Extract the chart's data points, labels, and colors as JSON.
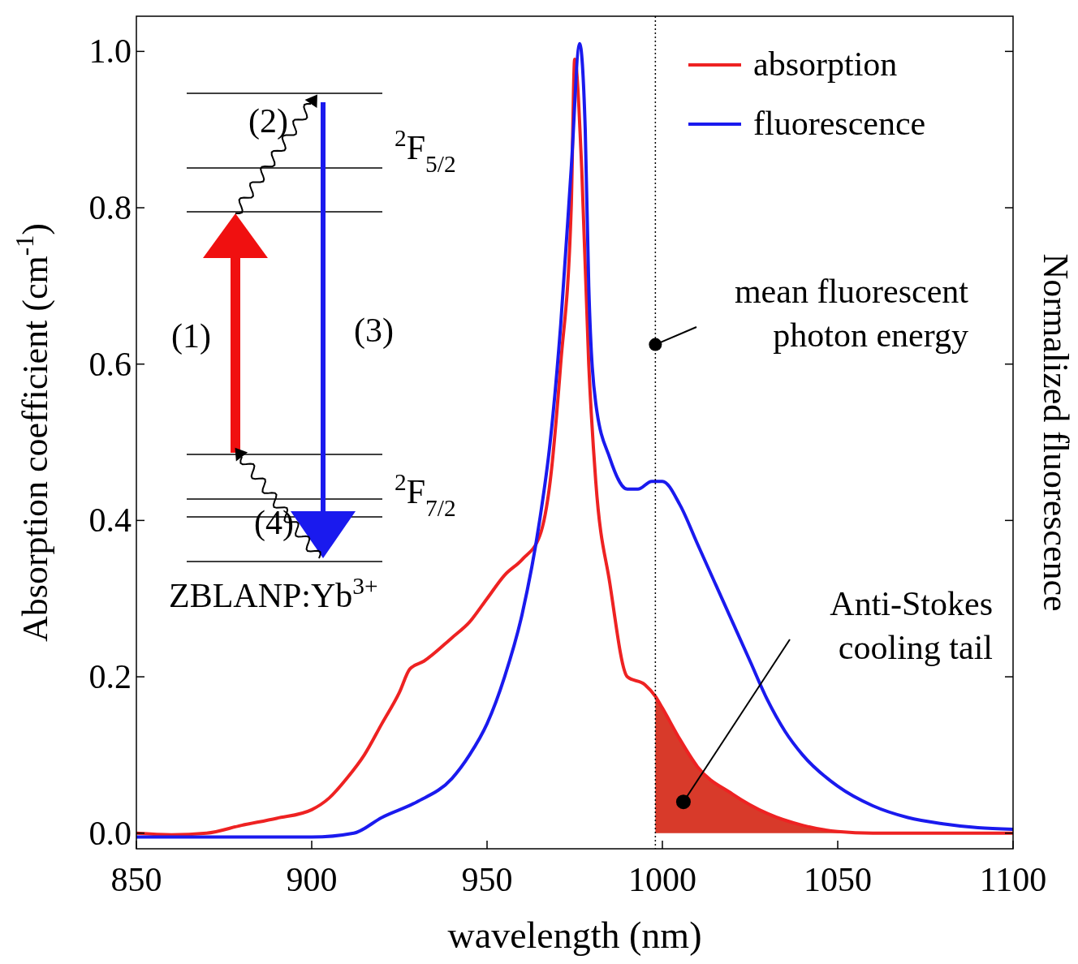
{
  "chart_data": {
    "type": "line",
    "xlabel": "wavelength (nm)",
    "ylabel": "Absorption coefficient (cm$^{-1}$)",
    "y2label": "Normalized fluorescence",
    "xlim": [
      850,
      1100
    ],
    "xticks": [
      850,
      900,
      950,
      1000,
      1050,
      1100
    ],
    "ylim": [
      -0.02,
      1.045
    ],
    "yticks": [
      {
        "value": 0,
        "label": "0.0"
      },
      {
        "value": 0.2,
        "label": "0.2"
      },
      {
        "value": 0.4,
        "label": "0.4"
      },
      {
        "value": 0.6,
        "label": "0.6"
      },
      {
        "value": 0.8,
        "label": "0.8"
      },
      {
        "value": 1,
        "label": "1.0"
      }
    ],
    "grid": false,
    "legend": "top right",
    "marker": "none",
    "line_style": "solid",
    "series": [
      {
        "type": "area",
        "color": "#d83a2a",
        "x": [
          998,
          1000,
          1005,
          1010,
          1020,
          1030,
          1040,
          1050,
          1060
        ],
        "values": [
          0.175,
          0.16,
          0.12,
          0.085,
          0.05,
          0.025,
          0.01,
          0.002,
          0
        ]
      },
      {
        "name": "absorption",
        "color": "#ee2222",
        "x": [
          850,
          860,
          870,
          880,
          890,
          900,
          905,
          910,
          915,
          920,
          925,
          928,
          932,
          940,
          945,
          950,
          955,
          960,
          965,
          968,
          971,
          974,
          975,
          977,
          979,
          981,
          985,
          990,
          995,
          998,
          1000,
          1005,
          1010,
          1020,
          1030,
          1040,
          1050,
          1060,
          1100
        ],
        "values": [
          0,
          -0.002,
          0,
          0.01,
          0.019,
          0.03,
          0.045,
          0.07,
          0.1,
          0.14,
          0.18,
          0.21,
          0.22,
          0.25,
          0.27,
          0.3,
          0.33,
          0.35,
          0.38,
          0.45,
          0.6,
          0.8,
          0.99,
          0.85,
          0.6,
          0.45,
          0.32,
          0.2,
          0.19,
          0.175,
          0.16,
          0.12,
          0.085,
          0.05,
          0.025,
          0.01,
          0.002,
          0,
          0
        ]
      },
      {
        "name": "fluorescence",
        "color": "#1a1aee",
        "x": [
          850,
          900,
          912,
          920,
          930,
          940,
          945,
          950,
          955,
          960,
          965,
          968,
          971,
          974,
          976.4,
          978,
          979,
          981,
          985,
          990,
          993,
          997,
          1000,
          1005,
          1010,
          1015,
          1020,
          1025,
          1030,
          1035,
          1040,
          1050,
          1060,
          1070,
          1080,
          1090,
          1100
        ],
        "values": [
          -0.005,
          -0.005,
          0,
          0.02,
          0.04,
          0.07,
          0.1,
          0.14,
          0.2,
          0.28,
          0.4,
          0.5,
          0.65,
          0.85,
          1.01,
          0.9,
          0.7,
          0.55,
          0.48,
          0.44,
          0.44,
          0.45,
          0.45,
          0.42,
          0.37,
          0.32,
          0.27,
          0.22,
          0.17,
          0.13,
          0.1,
          0.06,
          0.035,
          0.02,
          0.012,
          0.007,
          0.005
        ]
      }
    ],
    "ref_lines": [
      {
        "axis": "x",
        "value": 998,
        "label": "mean fluorescent\nphoton energy",
        "color": "#000000",
        "line_style": "dotted"
      }
    ],
    "annotations": [
      {
        "text": "Anti-Stokes\ncooling tail",
        "x": 1006,
        "y": 0.04
      },
      "(1)",
      "(2)",
      "(3)",
      "(4)",
      "$^{2}$F$_{5/2}$",
      "$^{2}$F$_{7/2}$",
      "ZBLANP:Yb$^{3+}$"
    ]
  }
}
